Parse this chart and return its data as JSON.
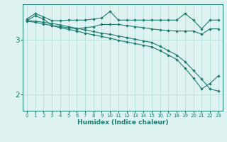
{
  "xlabel": "Humidex (Indice chaleur)",
  "ylabel": "",
  "background_color": "#dff2f2",
  "grid_color": "#b8dede",
  "line_color": "#1a7a6e",
  "xlim": [
    -0.5,
    23.5
  ],
  "ylim": [
    1.7,
    3.65
  ],
  "yticks": [
    2,
    3
  ],
  "xticks": [
    0,
    1,
    2,
    3,
    4,
    5,
    6,
    7,
    8,
    9,
    10,
    11,
    12,
    13,
    14,
    15,
    16,
    17,
    18,
    19,
    20,
    21,
    22,
    23
  ],
  "series": [
    {
      "x": [
        0,
        1,
        2,
        3,
        4,
        5,
        6,
        7,
        8,
        9,
        10,
        11,
        12,
        13,
        14,
        15,
        16,
        17,
        18,
        19,
        20,
        21,
        22,
        23
      ],
      "y": [
        3.38,
        3.48,
        3.42,
        3.35,
        3.35,
        3.36,
        3.36,
        3.36,
        3.38,
        3.4,
        3.52,
        3.36,
        3.36,
        3.36,
        3.36,
        3.36,
        3.36,
        3.36,
        3.36,
        3.48,
        3.36,
        3.2,
        3.36,
        3.36
      ]
    },
    {
      "x": [
        0,
        1,
        2,
        3,
        4,
        5,
        6,
        7,
        8,
        9,
        10,
        11,
        12,
        13,
        14,
        15,
        16,
        17,
        18,
        19,
        20,
        21,
        22,
        23
      ],
      "y": [
        3.35,
        3.44,
        3.38,
        3.26,
        3.24,
        3.22,
        3.2,
        3.22,
        3.24,
        3.28,
        3.28,
        3.28,
        3.26,
        3.24,
        3.22,
        3.2,
        3.18,
        3.17,
        3.16,
        3.16,
        3.16,
        3.1,
        3.2,
        3.2
      ]
    },
    {
      "x": [
        0,
        1,
        2,
        3,
        4,
        5,
        6,
        7,
        8,
        9,
        10,
        11,
        12,
        13,
        14,
        15,
        16,
        17,
        18,
        19,
        20,
        21,
        22,
        23
      ],
      "y": [
        3.35,
        3.34,
        3.32,
        3.3,
        3.27,
        3.24,
        3.21,
        3.18,
        3.15,
        3.12,
        3.1,
        3.07,
        3.04,
        3.01,
        2.98,
        2.95,
        2.88,
        2.8,
        2.72,
        2.6,
        2.44,
        2.28,
        2.1,
        2.06
      ]
    },
    {
      "x": [
        0,
        1,
        2,
        3,
        4,
        5,
        6,
        7,
        8,
        9,
        10,
        11,
        12,
        13,
        14,
        15,
        16,
        17,
        18,
        19,
        20,
        21,
        22,
        23
      ],
      "y": [
        3.34,
        3.32,
        3.29,
        3.26,
        3.22,
        3.19,
        3.16,
        3.12,
        3.09,
        3.06,
        3.03,
        2.99,
        2.96,
        2.93,
        2.9,
        2.87,
        2.8,
        2.72,
        2.64,
        2.48,
        2.3,
        2.1,
        2.2,
        2.34
      ]
    }
  ]
}
